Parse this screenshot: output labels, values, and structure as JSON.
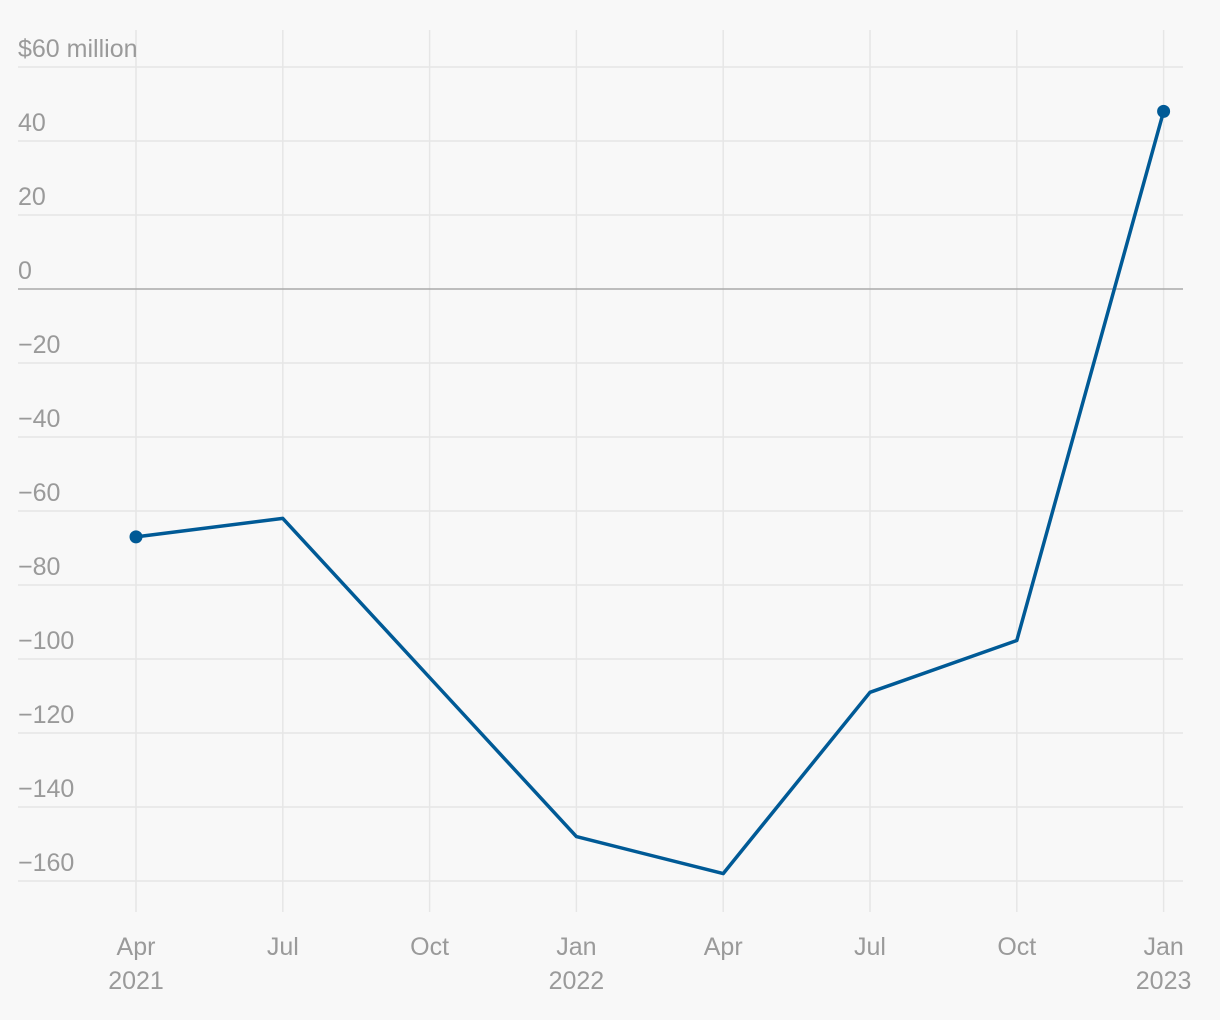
{
  "chart_data": {
    "type": "line",
    "x": [
      "2021-04",
      "2021-07",
      "2021-10",
      "2022-01",
      "2022-04",
      "2022-07",
      "2022-10",
      "2023-01"
    ],
    "x_tick_labels": [
      {
        "month": "Apr",
        "year": "2021"
      },
      {
        "month": "Jul",
        "year": ""
      },
      {
        "month": "Oct",
        "year": ""
      },
      {
        "month": "Jan",
        "year": "2022"
      },
      {
        "month": "Apr",
        "year": ""
      },
      {
        "month": "Jul",
        "year": ""
      },
      {
        "month": "Oct",
        "year": ""
      },
      {
        "month": "Jan",
        "year": "2023"
      }
    ],
    "series": [
      {
        "values": [
          -67,
          -62,
          -105,
          -148,
          -158,
          -109,
          -95,
          48
        ]
      }
    ],
    "y_ticks": [
      60,
      40,
      20,
      0,
      -20,
      -40,
      -60,
      -80,
      -100,
      -120,
      -140,
      -160
    ],
    "y_tick_labels": [
      "$60 million",
      "40",
      "20",
      "0",
      "−20",
      "−40",
      "−60",
      "−80",
      "−100",
      "−120",
      "−140",
      "−160"
    ],
    "ylim": [
      -172,
      64
    ],
    "grid": true,
    "endpoint_markers": true,
    "title": "",
    "xlabel": "",
    "ylabel": ""
  },
  "colors": {
    "line": "#005a96",
    "background": "#f8f8f8"
  }
}
